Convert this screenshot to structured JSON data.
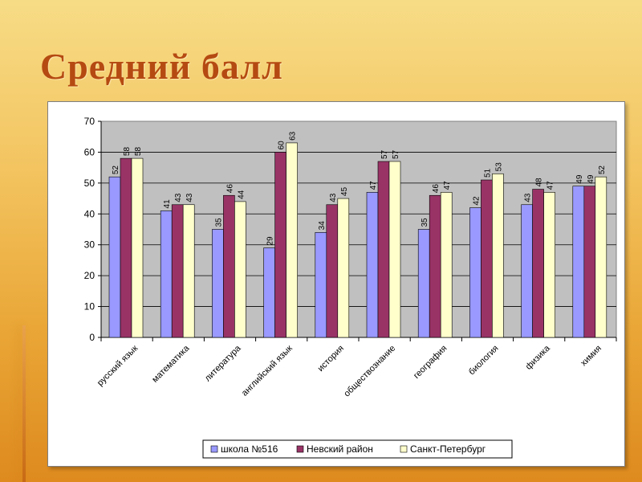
{
  "slide": {
    "title": "Средний балл"
  },
  "chart_data": {
    "type": "bar",
    "categories": [
      "русский язык",
      "математика",
      "литература",
      "английский язык",
      "история",
      "обществознание",
      "география",
      "биология",
      "физика",
      "химия"
    ],
    "series": [
      {
        "name": "школа №516",
        "color": "#9999ff",
        "values": [
          52,
          41,
          35,
          29,
          34,
          47,
          35,
          42,
          43,
          49
        ]
      },
      {
        "name": "Невский район",
        "color": "#993366",
        "values": [
          58,
          43,
          46,
          60,
          43,
          57,
          46,
          51,
          48,
          49
        ]
      },
      {
        "name": "Санкт-Петербург",
        "color": "#ffffcc",
        "values": [
          58,
          43,
          44,
          63,
          45,
          57,
          47,
          53,
          47,
          52
        ]
      }
    ],
    "data_labels": [
      [
        "52",
        "41",
        "35",
        "29",
        "34",
        "47",
        "35",
        "42",
        "43",
        "49"
      ],
      [
        "58",
        "43",
        "46",
        "60",
        "43",
        "57",
        "46",
        "51",
        "48",
        "49"
      ],
      [
        "58",
        "43",
        "44",
        "63",
        "45",
        "57",
        "47",
        "53",
        "47",
        "52"
      ]
    ],
    "ylim": [
      0,
      70
    ],
    "yticks": [
      "0",
      "10",
      "20",
      "30",
      "40",
      "50",
      "60",
      "70"
    ],
    "grid": true,
    "plot_background": "#c0c0c0",
    "legend_position": "bottom",
    "title": "",
    "xlabel": "",
    "ylabel": ""
  }
}
